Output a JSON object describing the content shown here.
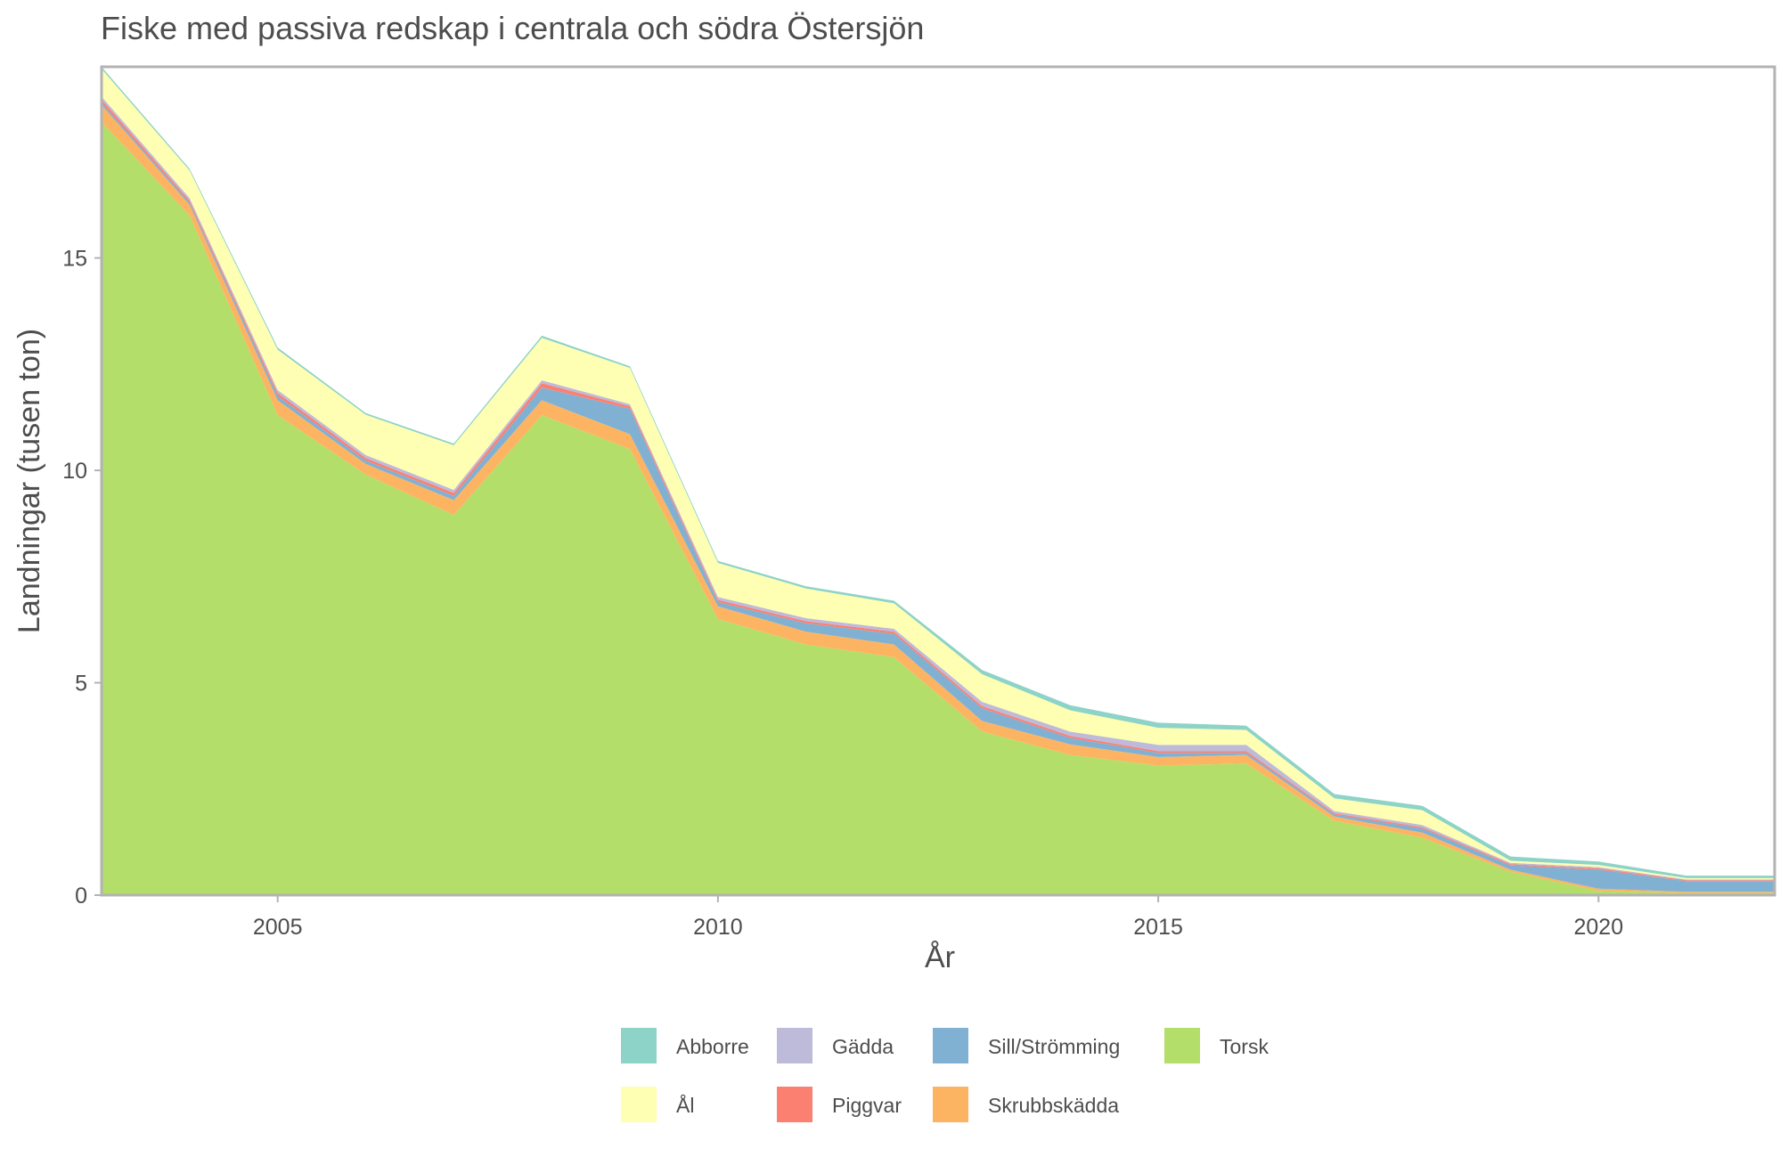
{
  "chart_data": {
    "type": "area",
    "stacked": true,
    "title": "Fiske med passiva redskap i centrala och södra Östersjön",
    "xlabel": "År",
    "ylabel": "Landningar (tusen ton)",
    "xlim": [
      2003,
      2022
    ],
    "ylim": [
      0,
      19.5
    ],
    "x_ticks": [
      2005,
      2010,
      2015,
      2020
    ],
    "y_ticks": [
      0,
      5,
      10,
      15
    ],
    "grid": false,
    "legend_position": "bottom",
    "x": [
      2003,
      2004,
      2005,
      2006,
      2007,
      2008,
      2009,
      2010,
      2011,
      2012,
      2013,
      2014,
      2015,
      2016,
      2017,
      2018,
      2019,
      2020,
      2021,
      2022
    ],
    "series": [
      {
        "name": "Torsk",
        "color": "#b3de69",
        "values": [
          18.2,
          16.0,
          11.3,
          9.9,
          8.95,
          11.3,
          10.5,
          6.5,
          5.9,
          5.6,
          3.85,
          3.3,
          3.05,
          3.1,
          1.75,
          1.35,
          0.55,
          0.1,
          0.05,
          0.05
        ]
      },
      {
        "name": "Skrubbskädda",
        "color": "#fdb462",
        "values": [
          0.4,
          0.25,
          0.35,
          0.25,
          0.35,
          0.35,
          0.35,
          0.3,
          0.3,
          0.3,
          0.25,
          0.25,
          0.2,
          0.2,
          0.1,
          0.12,
          0.05,
          0.05,
          0.03,
          0.03
        ]
      },
      {
        "name": "Sill/Strömming",
        "color": "#80b1d3",
        "values": [
          0.05,
          0.05,
          0.1,
          0.08,
          0.1,
          0.3,
          0.6,
          0.1,
          0.2,
          0.25,
          0.3,
          0.15,
          0.1,
          0.05,
          0.05,
          0.1,
          0.1,
          0.45,
          0.25,
          0.25
        ]
      },
      {
        "name": "Piggvar",
        "color": "#fb8072",
        "values": [
          0.08,
          0.05,
          0.07,
          0.06,
          0.07,
          0.1,
          0.06,
          0.05,
          0.05,
          0.05,
          0.05,
          0.05,
          0.04,
          0.04,
          0.03,
          0.03,
          0.03,
          0.03,
          0.02,
          0.02
        ]
      },
      {
        "name": "Gädda",
        "color": "#bebada",
        "values": [
          0.07,
          0.06,
          0.07,
          0.07,
          0.07,
          0.07,
          0.05,
          0.07,
          0.07,
          0.07,
          0.1,
          0.1,
          0.15,
          0.15,
          0.05,
          0.05,
          0.03,
          0.03,
          0.02,
          0.02
        ]
      },
      {
        "name": "Ål",
        "color": "#ffffb3",
        "values": [
          0.65,
          0.65,
          0.95,
          0.95,
          1.05,
          1.0,
          0.85,
          0.8,
          0.7,
          0.6,
          0.65,
          0.5,
          0.4,
          0.35,
          0.3,
          0.35,
          0.05,
          0.05,
          0.03,
          0.03
        ]
      },
      {
        "name": "Abborre",
        "color": "#8dd3c7",
        "values": [
          0.05,
          0.04,
          0.05,
          0.04,
          0.04,
          0.05,
          0.04,
          0.05,
          0.05,
          0.06,
          0.1,
          0.12,
          0.12,
          0.1,
          0.1,
          0.1,
          0.1,
          0.08,
          0.06,
          0.06
        ]
      }
    ],
    "legend_order": [
      "Abborre",
      "Gädda",
      "Sill/Strömming",
      "Torsk",
      "Ål",
      "Piggvar",
      "Skrubbskädda"
    ]
  }
}
